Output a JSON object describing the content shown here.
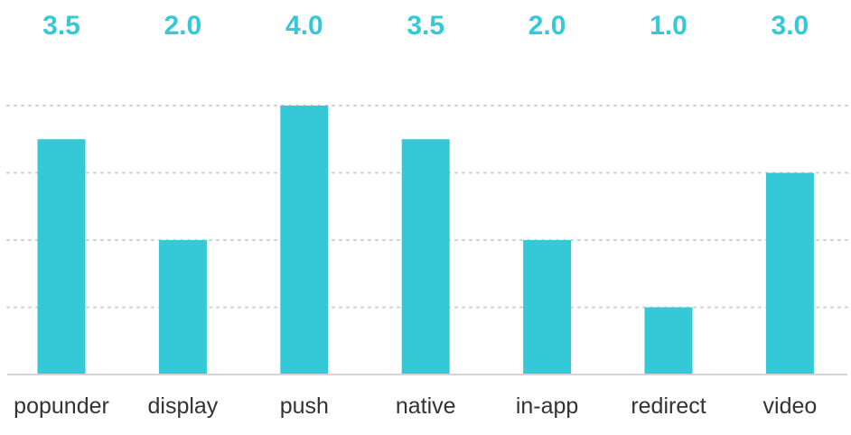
{
  "chart_data": {
    "type": "bar",
    "categories": [
      "popunder",
      "display",
      "push",
      "native",
      "in-app",
      "redirect",
      "video"
    ],
    "values": [
      3.5,
      2.0,
      4.0,
      3.5,
      2.0,
      1.0,
      3.0
    ],
    "value_labels": [
      "3.5",
      "2.0",
      "4.0",
      "3.5",
      "2.0",
      "1.0",
      "3.0"
    ],
    "ylim": [
      0,
      4
    ],
    "grid": true,
    "title": "",
    "xlabel": "",
    "ylabel": ""
  },
  "colors": {
    "bar": "#35c9d8",
    "value_label": "#35c9d8"
  }
}
